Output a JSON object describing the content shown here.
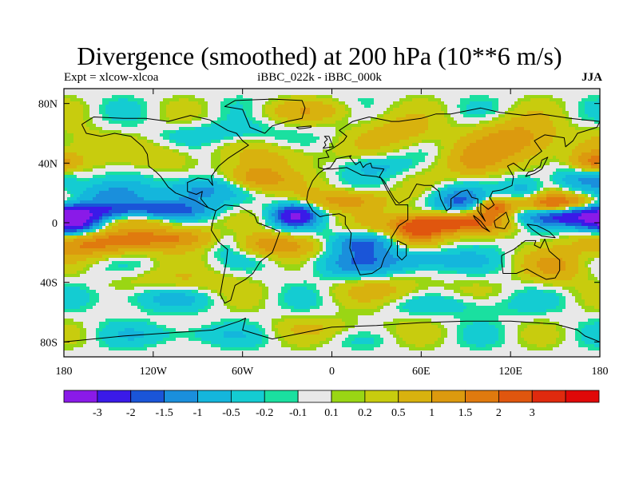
{
  "title": "Divergence (smoothed) at 200 hPa (10**6 m/s)",
  "subtitle_left": "Expt = xlcow-xlcoa",
  "subtitle_center": "iBBC_022k - iBBC_000k",
  "subtitle_right": "JJA",
  "y_axis_labels": [
    {
      "text": "80N",
      "lat": 80
    },
    {
      "text": "40N",
      "lat": 40
    },
    {
      "text": "0",
      "lat": 0
    },
    {
      "text": "40S",
      "lat": -40
    },
    {
      "text": "80S",
      "lat": -80
    }
  ],
  "x_axis_labels": [
    {
      "text": "180",
      "lon": -180
    },
    {
      "text": "120W",
      "lon": -120
    },
    {
      "text": "60W",
      "lon": -60
    },
    {
      "text": "0",
      "lon": 0
    },
    {
      "text": "60E",
      "lon": 60
    },
    {
      "text": "120E",
      "lon": 120
    },
    {
      "text": "180",
      "lon": 180
    }
  ],
  "colorbar": {
    "colors": [
      "#8a1ae8",
      "#3a1ae8",
      "#1a55d8",
      "#1a8fdc",
      "#14b6dc",
      "#14ccd2",
      "#1ae0a0",
      "#e8e8e8",
      "#9ad614",
      "#c8cc0e",
      "#d8b20e",
      "#dc9a0e",
      "#e07a0e",
      "#e0560e",
      "#e02a0e",
      "#e00808"
    ],
    "labels": [
      "-3",
      "-2",
      "-1.5",
      "-1",
      "-0.5",
      "-0.2",
      "-0.1",
      "0.1",
      "0.2",
      "0.5",
      "1",
      "1.5",
      "2",
      "3"
    ]
  },
  "chart_data": {
    "type": "heatmap",
    "title": "Divergence (smoothed) at 200 hPa (10**6 m/s)",
    "units": "10**6 m/s",
    "experiment": "xlcow-xlcoa",
    "comparison": "iBBC_022k - iBBC_000k",
    "season": "JJA",
    "xlim": [
      -180,
      180
    ],
    "ylim": [
      -90,
      90
    ],
    "levels": [
      -3,
      -2,
      -1.5,
      -1,
      -0.5,
      -0.2,
      -0.1,
      0.1,
      0.2,
      0.5,
      1,
      1.5,
      2,
      3
    ],
    "features": [
      {
        "lon": 165,
        "lat": 5,
        "value": -3.2,
        "slon": 25,
        "slat": 5
      },
      {
        "lon": -175,
        "lat": 0,
        "value": -2.6,
        "slon": 12,
        "slat": 5
      },
      {
        "lon": -150,
        "lat": 6,
        "value": -2.2,
        "slon": 25,
        "slat": 6
      },
      {
        "lon": -105,
        "lat": 8,
        "value": -1.5,
        "slon": 18,
        "slat": 5
      },
      {
        "lon": -25,
        "lat": 5,
        "value": -3.0,
        "slon": 10,
        "slat": 5
      },
      {
        "lon": -90,
        "lat": 22,
        "value": -1.3,
        "slon": 18,
        "slat": 6
      },
      {
        "lon": -70,
        "lat": -12,
        "value": -1.0,
        "slon": 12,
        "slat": 6
      },
      {
        "lon": 20,
        "lat": -14,
        "value": -1.6,
        "slon": 14,
        "slat": 5
      },
      {
        "lon": 15,
        "lat": -28,
        "value": -1.0,
        "slon": 20,
        "slat": 6
      },
      {
        "lon": 85,
        "lat": 15,
        "value": -1.6,
        "slon": 12,
        "slat": 6
      },
      {
        "lon": 60,
        "lat": -25,
        "value": -1.0,
        "slon": 25,
        "slat": 5
      },
      {
        "lon": 130,
        "lat": 20,
        "value": -1.0,
        "slon": 10,
        "slat": 8
      },
      {
        "lon": 170,
        "lat": 30,
        "value": -1.0,
        "slon": 15,
        "slat": 6
      },
      {
        "lon": 30,
        "lat": 38,
        "value": -0.6,
        "slon": 15,
        "slat": 5
      },
      {
        "lon": -120,
        "lat": -50,
        "value": -0.6,
        "slon": 25,
        "slat": 6
      },
      {
        "lon": -150,
        "lat": 20,
        "value": -0.8,
        "slon": 20,
        "slat": 5
      },
      {
        "lon": -70,
        "lat": 60,
        "value": -0.4,
        "slon": 25,
        "slat": 5
      },
      {
        "lon": -100,
        "lat": -75,
        "value": -0.5,
        "slon": 30,
        "slat": 5
      },
      {
        "lon": 90,
        "lat": -55,
        "value": -0.4,
        "slon": 30,
        "slat": 5
      },
      {
        "lon": 150,
        "lat": 12,
        "value": 2.8,
        "slon": 20,
        "slat": 5
      },
      {
        "lon": 80,
        "lat": 0,
        "value": 2.2,
        "slon": 28,
        "slat": 5
      },
      {
        "lon": 58,
        "lat": -6,
        "value": 2.0,
        "slon": 12,
        "slat": 6
      },
      {
        "lon": 110,
        "lat": 10,
        "value": 1.8,
        "slon": 8,
        "slat": 4
      },
      {
        "lon": -140,
        "lat": 2,
        "value": 1.8,
        "slon": 30,
        "slat": 4
      },
      {
        "lon": -110,
        "lat": -10,
        "value": 1.6,
        "slon": 30,
        "slat": 5
      },
      {
        "lon": -160,
        "lat": -15,
        "value": 1.4,
        "slon": 25,
        "slat": 6
      },
      {
        "lon": -50,
        "lat": 30,
        "value": 1.6,
        "slon": 15,
        "slat": 6
      },
      {
        "lon": -40,
        "lat": -15,
        "value": 1.4,
        "slon": 20,
        "slat": 5
      },
      {
        "lon": 10,
        "lat": 15,
        "value": 1.3,
        "slon": 20,
        "slat": 5
      },
      {
        "lon": 125,
        "lat": 55,
        "value": 1.4,
        "slon": 20,
        "slat": 10
      },
      {
        "lon": 95,
        "lat": 40,
        "value": 1.0,
        "slon": 15,
        "slat": 8
      },
      {
        "lon": 175,
        "lat": 40,
        "value": 1.5,
        "slon": 10,
        "slat": 5
      },
      {
        "lon": -30,
        "lat": 45,
        "value": 0.6,
        "slon": 20,
        "slat": 6
      },
      {
        "lon": -15,
        "lat": 75,
        "value": 0.7,
        "slon": 25,
        "slat": 5
      },
      {
        "lon": 45,
        "lat": 60,
        "value": 0.8,
        "slon": 20,
        "slat": 8
      },
      {
        "lon": -110,
        "lat": 45,
        "value": 0.6,
        "slon": 15,
        "slat": 6
      },
      {
        "lon": 150,
        "lat": -30,
        "value": 1.0,
        "slon": 15,
        "slat": 8
      },
      {
        "lon": -100,
        "lat": -40,
        "value": 0.6,
        "slon": 25,
        "slat": 6
      },
      {
        "lon": 40,
        "lat": -45,
        "value": 0.6,
        "slon": 25,
        "slat": 6
      },
      {
        "lon": -170,
        "lat": 50,
        "value": 0.5,
        "slon": 15,
        "slat": 10
      },
      {
        "lon": 0,
        "lat": -70,
        "value": 0.4,
        "slon": 30,
        "slat": 5
      }
    ]
  },
  "coastlines": [
    [
      [
        -168,
        66
      ],
      [
        -160,
        71
      ],
      [
        -140,
        70
      ],
      [
        -125,
        70
      ],
      [
        -110,
        68
      ],
      [
        -95,
        72
      ],
      [
        -82,
        69
      ],
      [
        -70,
        62
      ],
      [
        -64,
        60
      ],
      [
        -60,
        55
      ],
      [
        -56,
        52
      ],
      [
        -64,
        47
      ],
      [
        -70,
        43
      ],
      [
        -76,
        38
      ],
      [
        -81,
        31
      ],
      [
        -80,
        25
      ],
      [
        -83,
        29
      ],
      [
        -90,
        30
      ],
      [
        -97,
        27
      ],
      [
        -97,
        21
      ],
      [
        -91,
        19
      ],
      [
        -87,
        21
      ],
      [
        -88,
        16
      ],
      [
        -83,
        10
      ],
      [
        -80,
        9
      ],
      [
        -78,
        8
      ],
      [
        -85,
        11
      ],
      [
        -92,
        15
      ],
      [
        -105,
        20
      ],
      [
        -110,
        24
      ],
      [
        -115,
        31
      ],
      [
        -118,
        34
      ],
      [
        -123,
        38
      ],
      [
        -124,
        46
      ],
      [
        -127,
        51
      ],
      [
        -135,
        58
      ],
      [
        -146,
        60
      ],
      [
        -155,
        58
      ],
      [
        -165,
        60
      ],
      [
        -168,
        66
      ]
    ],
    [
      [
        -78,
        8
      ],
      [
        -72,
        12
      ],
      [
        -62,
        11
      ],
      [
        -52,
        5
      ],
      [
        -50,
        0
      ],
      [
        -42,
        -3
      ],
      [
        -35,
        -6
      ],
      [
        -37,
        -12
      ],
      [
        -40,
        -20
      ],
      [
        -48,
        -26
      ],
      [
        -53,
        -34
      ],
      [
        -58,
        -38
      ],
      [
        -65,
        -42
      ],
      [
        -68,
        -52
      ],
      [
        -72,
        -54
      ],
      [
        -75,
        -48
      ],
      [
        -73,
        -37
      ],
      [
        -71,
        -27
      ],
      [
        -70,
        -18
      ],
      [
        -76,
        -13
      ],
      [
        -81,
        -5
      ],
      [
        -80,
        1
      ],
      [
        -78,
        8
      ]
    ],
    [
      [
        -17,
        15
      ],
      [
        -16,
        21
      ],
      [
        -13,
        28
      ],
      [
        -9,
        33
      ],
      [
        -5,
        36
      ],
      [
        0,
        36
      ],
      [
        10,
        37
      ],
      [
        20,
        32
      ],
      [
        30,
        31
      ],
      [
        33,
        30
      ],
      [
        37,
        22
      ],
      [
        43,
        12
      ],
      [
        51,
        12
      ],
      [
        51,
        2
      ],
      [
        45,
        -2
      ],
      [
        40,
        -10
      ],
      [
        40,
        -15
      ],
      [
        35,
        -24
      ],
      [
        33,
        -30
      ],
      [
        27,
        -34
      ],
      [
        19,
        -35
      ],
      [
        15,
        -26
      ],
      [
        12,
        -17
      ],
      [
        13,
        -7
      ],
      [
        9,
        -1
      ],
      [
        9,
        4
      ],
      [
        5,
        6
      ],
      [
        -4,
        5
      ],
      [
        -8,
        4
      ],
      [
        -13,
        8
      ],
      [
        -17,
        15
      ]
    ],
    [
      [
        -9,
        37
      ],
      [
        -9,
        43
      ],
      [
        -2,
        44
      ],
      [
        -4,
        48
      ],
      [
        -1,
        49
      ],
      [
        4,
        52
      ],
      [
        8,
        55
      ],
      [
        10,
        58
      ],
      [
        5,
        62
      ],
      [
        14,
        68
      ],
      [
        25,
        71
      ],
      [
        40,
        68
      ],
      [
        45,
        68
      ],
      [
        60,
        70
      ],
      [
        70,
        73
      ],
      [
        80,
        73
      ],
      [
        100,
        77
      ],
      [
        113,
        74
      ],
      [
        130,
        72
      ],
      [
        140,
        73
      ],
      [
        160,
        70
      ],
      [
        170,
        69
      ],
      [
        180,
        68
      ],
      [
        178,
        64
      ],
      [
        165,
        60
      ],
      [
        162,
        55
      ],
      [
        157,
        51
      ],
      [
        156,
        57
      ],
      [
        143,
        59
      ],
      [
        136,
        55
      ],
      [
        141,
        48
      ],
      [
        133,
        42
      ],
      [
        129,
        35
      ],
      [
        126,
        37
      ],
      [
        122,
        40
      ],
      [
        118,
        38
      ],
      [
        122,
        31
      ],
      [
        121,
        25
      ],
      [
        114,
        22
      ],
      [
        108,
        21
      ],
      [
        106,
        17
      ],
      [
        109,
        12
      ],
      [
        105,
        9
      ],
      [
        100,
        13
      ],
      [
        100,
        7
      ],
      [
        103,
        1
      ],
      [
        98,
        8
      ],
      [
        98,
        16
      ],
      [
        94,
        17
      ],
      [
        91,
        22
      ],
      [
        87,
        21
      ],
      [
        80,
        16
      ],
      [
        80,
        10
      ],
      [
        77,
        8
      ],
      [
        73,
        16
      ],
      [
        72,
        21
      ],
      [
        67,
        25
      ],
      [
        62,
        25
      ],
      [
        57,
        26
      ],
      [
        52,
        17
      ],
      [
        45,
        13
      ],
      [
        42,
        16
      ],
      [
        39,
        21
      ],
      [
        35,
        28
      ],
      [
        32,
        31
      ],
      [
        35,
        36
      ],
      [
        27,
        37
      ],
      [
        26,
        40
      ],
      [
        23,
        39
      ],
      [
        21,
        37
      ],
      [
        19,
        41
      ],
      [
        16,
        39
      ],
      [
        12,
        44
      ],
      [
        13,
        45
      ],
      [
        8,
        44
      ],
      [
        3,
        43
      ],
      [
        -1,
        37
      ],
      [
        -5,
        36
      ],
      [
        -9,
        37
      ]
    ],
    [
      [
        114,
        -22
      ],
      [
        122,
        -18
      ],
      [
        130,
        -12
      ],
      [
        137,
        -12
      ],
      [
        136,
        -15
      ],
      [
        140,
        -17
      ],
      [
        143,
        -11
      ],
      [
        146,
        -19
      ],
      [
        153,
        -25
      ],
      [
        153,
        -32
      ],
      [
        150,
        -37
      ],
      [
        144,
        -38
      ],
      [
        138,
        -35
      ],
      [
        131,
        -31
      ],
      [
        124,
        -34
      ],
      [
        115,
        -34
      ],
      [
        114,
        -26
      ],
      [
        114,
        -22
      ]
    ],
    [
      [
        -45,
        60
      ],
      [
        -55,
        64
      ],
      [
        -60,
        76
      ],
      [
        -72,
        78
      ],
      [
        -65,
        82
      ],
      [
        -40,
        83
      ],
      [
        -20,
        82
      ],
      [
        -18,
        77
      ],
      [
        -20,
        70
      ],
      [
        -30,
        68
      ],
      [
        -40,
        65
      ],
      [
        -45,
        60
      ]
    ],
    [
      [
        -180,
        -80
      ],
      [
        -140,
        -76
      ],
      [
        -110,
        -74
      ],
      [
        -80,
        -72
      ],
      [
        -62,
        -66
      ],
      [
        -58,
        -64
      ],
      [
        -60,
        -72
      ],
      [
        -40,
        -78
      ],
      [
        -20,
        -74
      ],
      [
        0,
        -70
      ],
      [
        30,
        -69
      ],
      [
        60,
        -67
      ],
      [
        90,
        -66
      ],
      [
        120,
        -66
      ],
      [
        150,
        -68
      ],
      [
        165,
        -72
      ],
      [
        170,
        -76
      ],
      [
        180,
        -80
      ]
    ],
    [
      [
        -6,
        50
      ],
      [
        -4,
        52
      ],
      [
        -5,
        54
      ],
      [
        -3,
        56
      ],
      [
        -5,
        58
      ],
      [
        -2,
        58
      ],
      [
        0,
        53
      ],
      [
        1,
        51
      ],
      [
        -6,
        50
      ]
    ],
    [
      [
        130,
        31
      ],
      [
        132,
        34
      ],
      [
        136,
        35
      ],
      [
        140,
        38
      ],
      [
        141,
        42
      ],
      [
        145,
        44
      ],
      [
        141,
        36
      ],
      [
        136,
        33
      ],
      [
        130,
        31
      ]
    ],
    [
      [
        95,
        5
      ],
      [
        100,
        1
      ],
      [
        104,
        -4
      ],
      [
        106,
        -6
      ],
      [
        101,
        -3
      ],
      [
        96,
        3
      ],
      [
        95,
        5
      ]
    ],
    [
      [
        109,
        1
      ],
      [
        110,
        -3
      ],
      [
        116,
        -4
      ],
      [
        119,
        1
      ],
      [
        117,
        7
      ],
      [
        113,
        4
      ],
      [
        109,
        1
      ]
    ],
    [
      [
        131,
        -1
      ],
      [
        138,
        -2
      ],
      [
        146,
        -6
      ],
      [
        150,
        -10
      ],
      [
        141,
        -9
      ],
      [
        134,
        -4
      ],
      [
        131,
        -1
      ]
    ],
    [
      [
        44,
        -12
      ],
      [
        50,
        -15
      ],
      [
        50,
        -22
      ],
      [
        47,
        -25
      ],
      [
        44,
        -22
      ],
      [
        44,
        -12
      ]
    ],
    [
      [
        -24,
        64
      ],
      [
        -14,
        65
      ],
      [
        -14,
        64
      ],
      [
        -22,
        63
      ],
      [
        -24,
        64
      ]
    ]
  ]
}
